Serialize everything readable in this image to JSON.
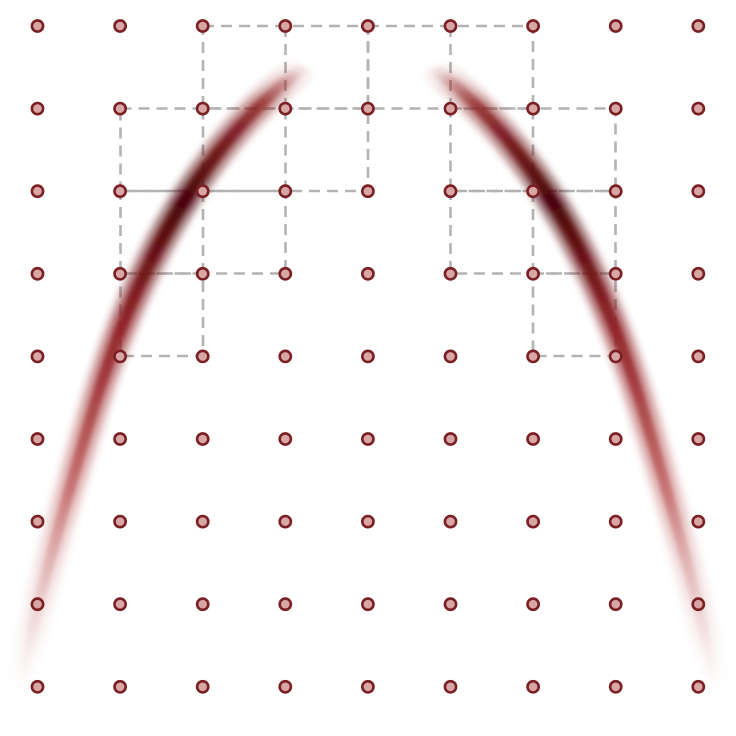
{
  "diagram": {
    "grid": {
      "columns": 9,
      "rows": 9
    },
    "colors": {
      "background": "#ffffff",
      "node_fill": "#d9a6a6",
      "node_stroke": "#7a1f24",
      "patch_outline": "#b3b3b3",
      "density_light": "#ecd2d2",
      "density_mid": "#b03a3a",
      "density_dark": "#4a0508"
    },
    "patches": [
      {
        "name": "patch-top-left",
        "cells": [
          [
            2,
            0
          ],
          [
            3,
            0
          ],
          [
            1,
            1
          ],
          [
            2,
            1
          ],
          [
            1,
            2
          ],
          [
            2,
            2
          ],
          [
            1,
            3
          ]
        ]
      },
      {
        "name": "patch-top-center",
        "cells": [
          [
            4,
            0
          ],
          [
            5,
            0
          ]
        ]
      },
      {
        "name": "patch-top-right",
        "cells": [
          [
            5,
            0
          ],
          [
            6,
            0
          ],
          [
            5,
            1
          ],
          [
            6,
            1
          ],
          [
            5,
            2
          ],
          [
            6,
            2
          ],
          [
            6,
            3
          ]
        ]
      },
      {
        "name": "patch-row1-center",
        "cells": [
          [
            3,
            1
          ],
          [
            4,
            1
          ]
        ]
      }
    ],
    "curves": [
      {
        "name": "left-arc"
      },
      {
        "name": "right-arc"
      }
    ]
  }
}
